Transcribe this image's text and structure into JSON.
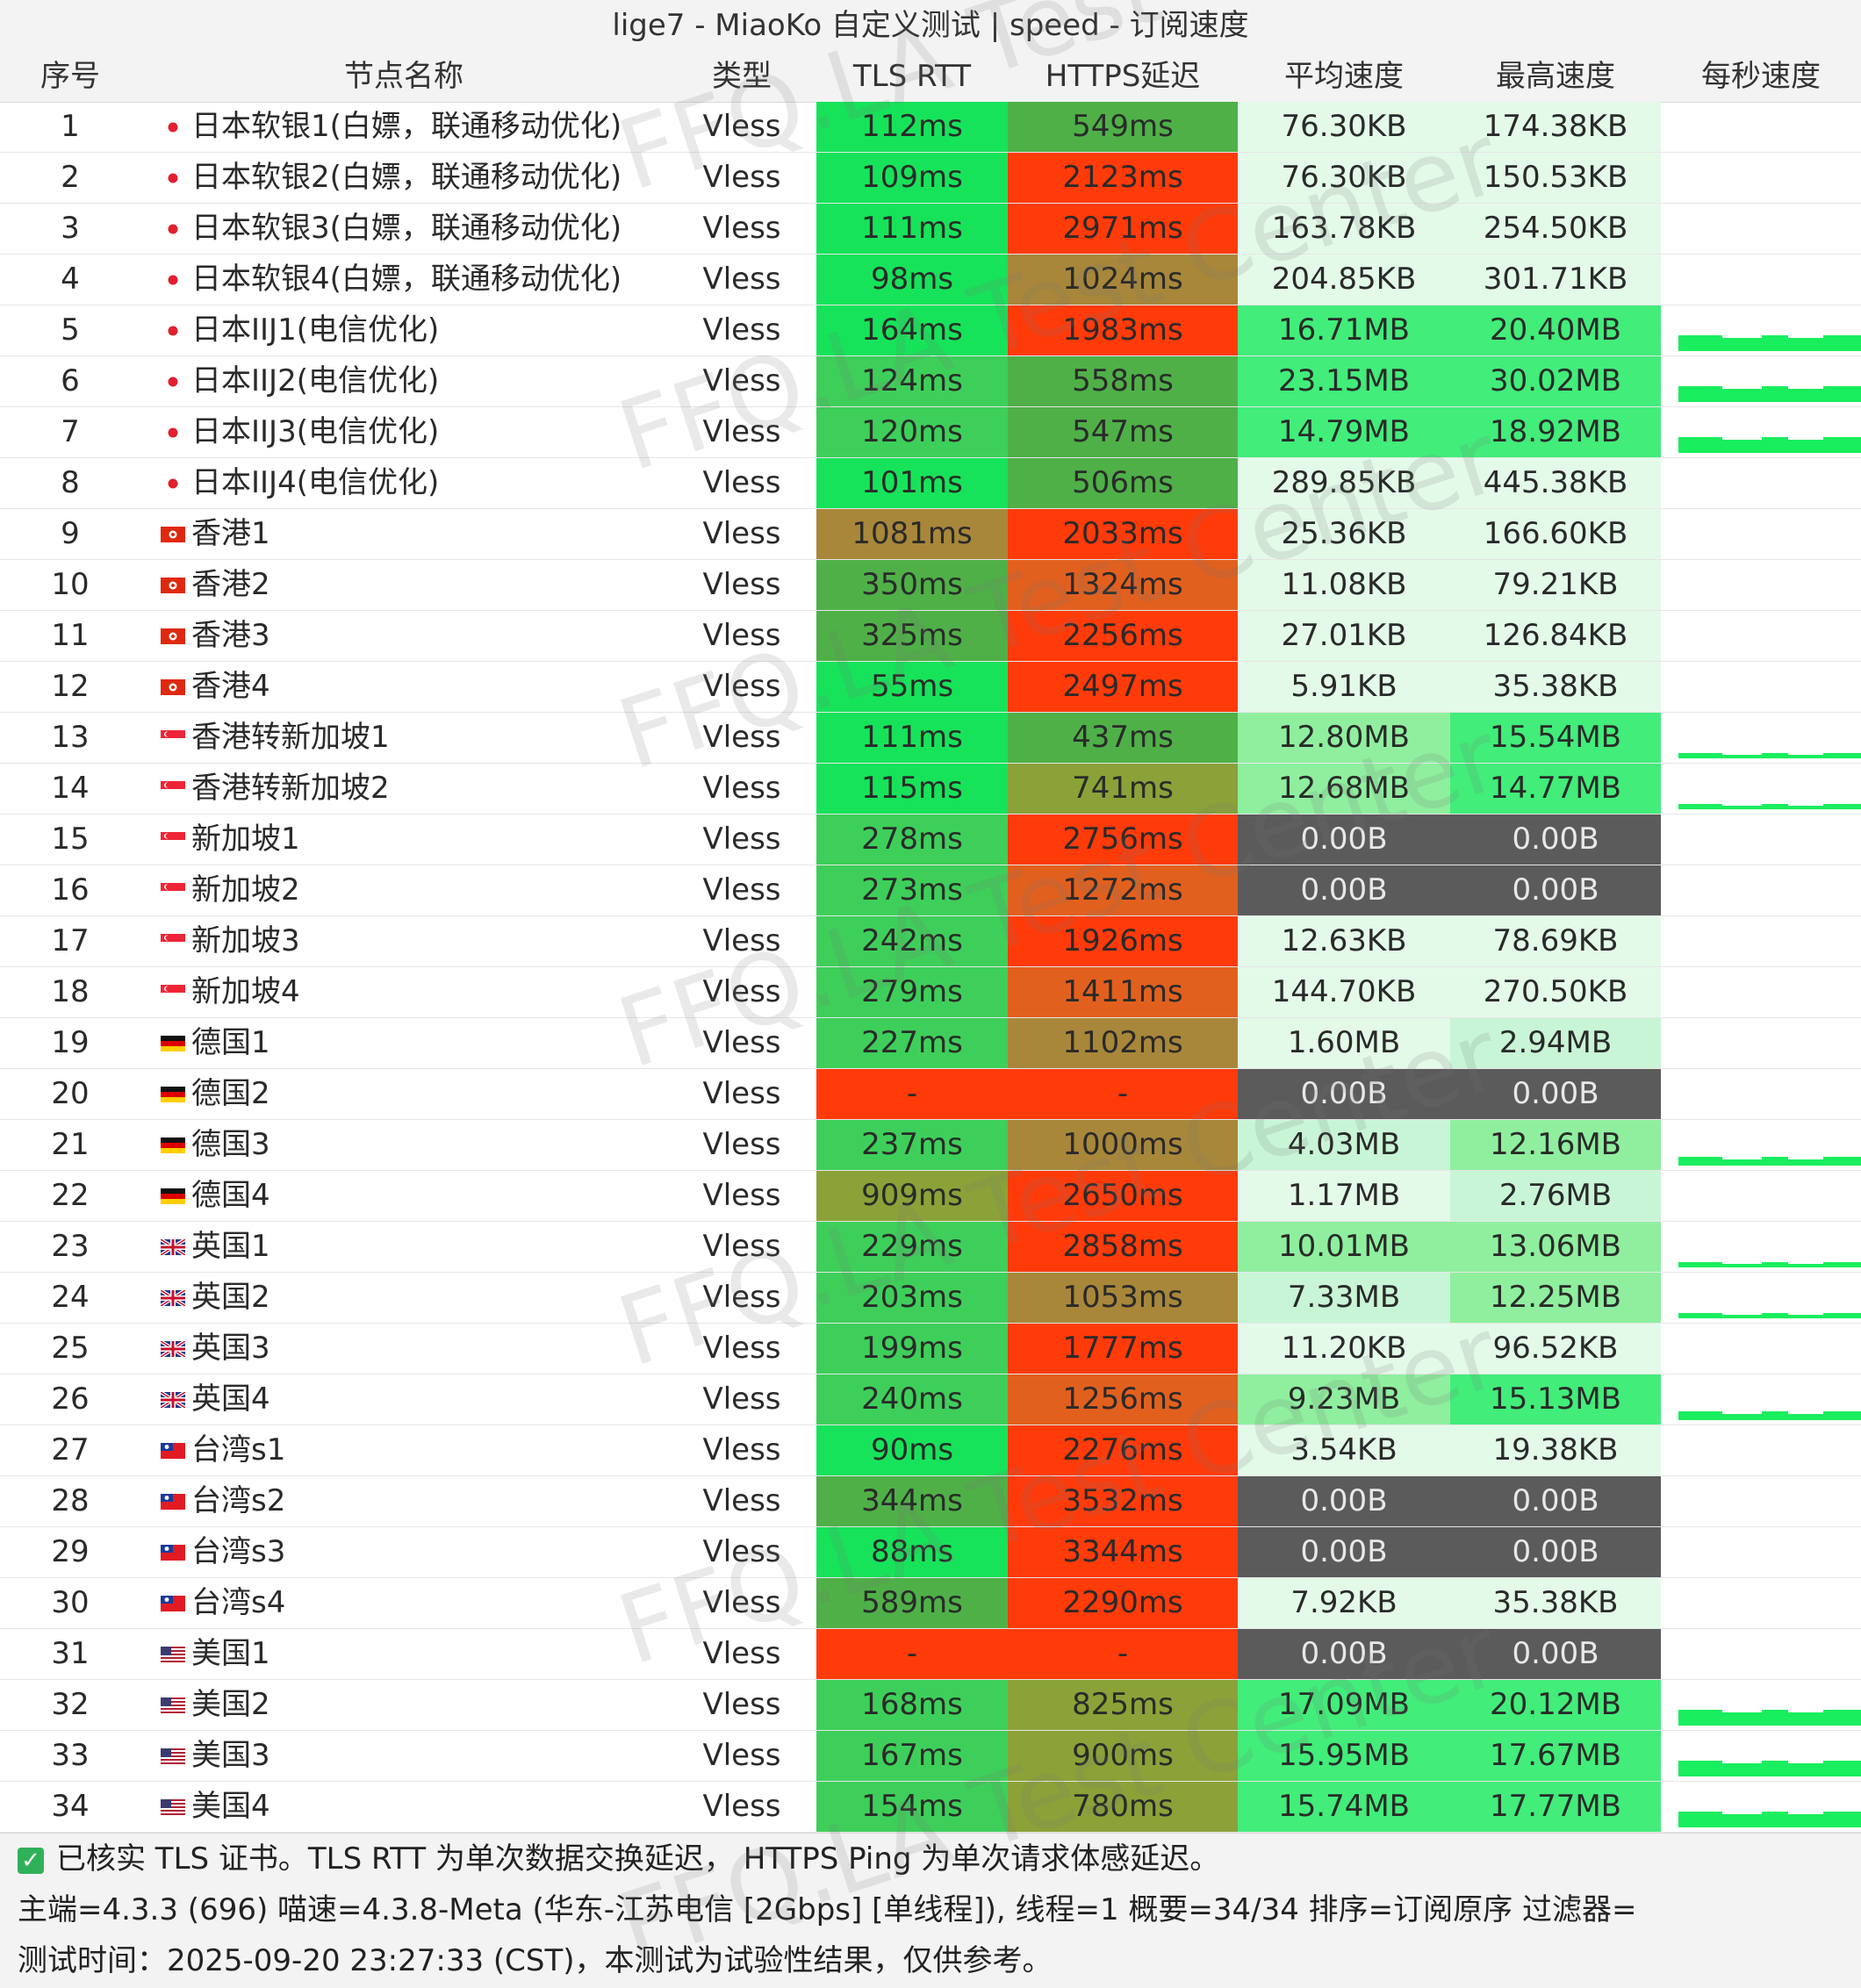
{
  "window": {
    "title": "lige7 - MiaoKo 自定义测试 | speed - 订阅速度"
  },
  "columns": [
    "序号",
    "节点名称",
    "类型",
    "TLS RTT",
    "HTTPS延迟",
    "平均速度",
    "最高速度",
    "每秒速度"
  ],
  "colors": {
    "green_bright": "#17e35a",
    "green": "#3ecf5a",
    "green_dark": "#4fb048",
    "olive": "#8aa238",
    "brown": "#a8873a",
    "orange": "#e2601e",
    "red": "#ff3b0a",
    "gray": "#5b5b5b",
    "speed_very_light": "#e3fae9",
    "speed_light": "#c8f5d6",
    "speed_mid": "#8fef9f",
    "speed_high": "#42ed7a"
  },
  "rows": [
    {
      "id": "1",
      "flag": "jp",
      "name": "日本软银1(白嫖，联通移动优化)",
      "type": "Vless",
      "tls": "112ms",
      "tls_c": "green_bright",
      "https": "549ms",
      "https_c": "green_dark",
      "avg": "76.30KB",
      "avg_c": "speed_very_light",
      "max": "174.38KB",
      "max_c": "speed_very_light",
      "spark": 0
    },
    {
      "id": "2",
      "flag": "jp",
      "name": "日本软银2(白嫖，联通移动优化)",
      "type": "Vless",
      "tls": "109ms",
      "tls_c": "green_bright",
      "https": "2123ms",
      "https_c": "red",
      "avg": "76.30KB",
      "avg_c": "speed_very_light",
      "max": "150.53KB",
      "max_c": "speed_very_light",
      "spark": 0
    },
    {
      "id": "3",
      "flag": "jp",
      "name": "日本软银3(白嫖，联通移动优化)",
      "type": "Vless",
      "tls": "111ms",
      "tls_c": "green_bright",
      "https": "2971ms",
      "https_c": "red",
      "avg": "163.78KB",
      "avg_c": "speed_very_light",
      "max": "254.50KB",
      "max_c": "speed_very_light",
      "spark": 0
    },
    {
      "id": "4",
      "flag": "jp",
      "name": "日本软银4(白嫖，联通移动优化)",
      "type": "Vless",
      "tls": "98ms",
      "tls_c": "green_bright",
      "https": "1024ms",
      "https_c": "brown",
      "avg": "204.85KB",
      "avg_c": "speed_very_light",
      "max": "301.71KB",
      "max_c": "speed_very_light",
      "spark": 0
    },
    {
      "id": "5",
      "flag": "jp",
      "name": "日本IIJ1(电信优化)",
      "type": "Vless",
      "tls": "164ms",
      "tls_c": "green_bright",
      "https": "1983ms",
      "https_c": "red",
      "avg": "16.71MB",
      "avg_c": "speed_high",
      "max": "20.40MB",
      "max_c": "speed_high",
      "spark": 3
    },
    {
      "id": "6",
      "flag": "jp",
      "name": "日本IIJ2(电信优化)",
      "type": "Vless",
      "tls": "124ms",
      "tls_c": "green",
      "https": "558ms",
      "https_c": "green_dark",
      "avg": "23.15MB",
      "avg_c": "speed_high",
      "max": "30.02MB",
      "max_c": "speed_high",
      "spark": 3
    },
    {
      "id": "7",
      "flag": "jp",
      "name": "日本IIJ3(电信优化)",
      "type": "Vless",
      "tls": "120ms",
      "tls_c": "green",
      "https": "547ms",
      "https_c": "green_dark",
      "avg": "14.79MB",
      "avg_c": "speed_high",
      "max": "18.92MB",
      "max_c": "speed_high",
      "spark": 3
    },
    {
      "id": "8",
      "flag": "jp",
      "name": "日本IIJ4(电信优化)",
      "type": "Vless",
      "tls": "101ms",
      "tls_c": "green_bright",
      "https": "506ms",
      "https_c": "green_dark",
      "avg": "289.85KB",
      "avg_c": "speed_very_light",
      "max": "445.38KB",
      "max_c": "speed_very_light",
      "spark": 0
    },
    {
      "id": "9",
      "flag": "hk",
      "name": "香港1",
      "type": "Vless",
      "tls": "1081ms",
      "tls_c": "brown",
      "https": "2033ms",
      "https_c": "red",
      "avg": "25.36KB",
      "avg_c": "speed_very_light",
      "max": "166.60KB",
      "max_c": "speed_very_light",
      "spark": 0
    },
    {
      "id": "10",
      "flag": "hk",
      "name": "香港2",
      "type": "Vless",
      "tls": "350ms",
      "tls_c": "green_dark",
      "https": "1324ms",
      "https_c": "orange",
      "avg": "11.08KB",
      "avg_c": "speed_very_light",
      "max": "79.21KB",
      "max_c": "speed_very_light",
      "spark": 0
    },
    {
      "id": "11",
      "flag": "hk",
      "name": "香港3",
      "type": "Vless",
      "tls": "325ms",
      "tls_c": "green_dark",
      "https": "2256ms",
      "https_c": "red",
      "avg": "27.01KB",
      "avg_c": "speed_very_light",
      "max": "126.84KB",
      "max_c": "speed_very_light",
      "spark": 0
    },
    {
      "id": "12",
      "flag": "hk",
      "name": "香港4",
      "type": "Vless",
      "tls": "55ms",
      "tls_c": "green_bright",
      "https": "2497ms",
      "https_c": "red",
      "avg": "5.91KB",
      "avg_c": "speed_very_light",
      "max": "35.38KB",
      "max_c": "speed_very_light",
      "spark": 0
    },
    {
      "id": "13",
      "flag": "sg",
      "name": "香港转新加坡1",
      "type": "Vless",
      "tls": "111ms",
      "tls_c": "green_bright",
      "https": "437ms",
      "https_c": "green_dark",
      "avg": "12.80MB",
      "avg_c": "speed_mid",
      "max": "15.54MB",
      "max_c": "speed_high",
      "spark": 1
    },
    {
      "id": "14",
      "flag": "sg",
      "name": "香港转新加坡2",
      "type": "Vless",
      "tls": "115ms",
      "tls_c": "green_bright",
      "https": "741ms",
      "https_c": "olive",
      "avg": "12.68MB",
      "avg_c": "speed_mid",
      "max": "14.77MB",
      "max_c": "speed_high",
      "spark": 1
    },
    {
      "id": "15",
      "flag": "sg",
      "name": "新加坡1",
      "type": "Vless",
      "tls": "278ms",
      "tls_c": "green",
      "https": "2756ms",
      "https_c": "red",
      "avg": "0.00B",
      "avg_c": "gray",
      "max": "0.00B",
      "max_c": "gray",
      "spark": 0
    },
    {
      "id": "16",
      "flag": "sg",
      "name": "新加坡2",
      "type": "Vless",
      "tls": "273ms",
      "tls_c": "green",
      "https": "1272ms",
      "https_c": "orange",
      "avg": "0.00B",
      "avg_c": "gray",
      "max": "0.00B",
      "max_c": "gray",
      "spark": 0
    },
    {
      "id": "17",
      "flag": "sg",
      "name": "新加坡3",
      "type": "Vless",
      "tls": "242ms",
      "tls_c": "green",
      "https": "1926ms",
      "https_c": "red",
      "avg": "12.63KB",
      "avg_c": "speed_very_light",
      "max": "78.69KB",
      "max_c": "speed_very_light",
      "spark": 0
    },
    {
      "id": "18",
      "flag": "sg",
      "name": "新加坡4",
      "type": "Vless",
      "tls": "279ms",
      "tls_c": "green",
      "https": "1411ms",
      "https_c": "orange",
      "avg": "144.70KB",
      "avg_c": "speed_very_light",
      "max": "270.50KB",
      "max_c": "speed_very_light",
      "spark": 0
    },
    {
      "id": "19",
      "flag": "de",
      "name": "德国1",
      "type": "Vless",
      "tls": "227ms",
      "tls_c": "green",
      "https": "1102ms",
      "https_c": "brown",
      "avg": "1.60MB",
      "avg_c": "speed_very_light",
      "max": "2.94MB",
      "max_c": "speed_light",
      "spark": 0
    },
    {
      "id": "20",
      "flag": "de",
      "name": "德国2",
      "type": "Vless",
      "tls": "-",
      "tls_c": "red",
      "https": "-",
      "https_c": "red",
      "avg": "0.00B",
      "avg_c": "gray",
      "max": "0.00B",
      "max_c": "gray",
      "spark": 0
    },
    {
      "id": "21",
      "flag": "de",
      "name": "德国3",
      "type": "Vless",
      "tls": "237ms",
      "tls_c": "green",
      "https": "1000ms",
      "https_c": "brown",
      "avg": "4.03MB",
      "avg_c": "speed_light",
      "max": "12.16MB",
      "max_c": "speed_mid",
      "spark": 2
    },
    {
      "id": "22",
      "flag": "de",
      "name": "德国4",
      "type": "Vless",
      "tls": "909ms",
      "tls_c": "olive",
      "https": "2650ms",
      "https_c": "red",
      "avg": "1.17MB",
      "avg_c": "speed_very_light",
      "max": "2.76MB",
      "max_c": "speed_light",
      "spark": 0
    },
    {
      "id": "23",
      "flag": "gb",
      "name": "英国1",
      "type": "Vless",
      "tls": "229ms",
      "tls_c": "green",
      "https": "2858ms",
      "https_c": "red",
      "avg": "10.01MB",
      "avg_c": "speed_mid",
      "max": "13.06MB",
      "max_c": "speed_mid",
      "spark": 1
    },
    {
      "id": "24",
      "flag": "gb",
      "name": "英国2",
      "type": "Vless",
      "tls": "203ms",
      "tls_c": "green",
      "https": "1053ms",
      "https_c": "brown",
      "avg": "7.33MB",
      "avg_c": "speed_light",
      "max": "12.25MB",
      "max_c": "speed_mid",
      "spark": 1
    },
    {
      "id": "25",
      "flag": "gb",
      "name": "英国3",
      "type": "Vless",
      "tls": "199ms",
      "tls_c": "green",
      "https": "1777ms",
      "https_c": "red",
      "avg": "11.20KB",
      "avg_c": "speed_very_light",
      "max": "96.52KB",
      "max_c": "speed_very_light",
      "spark": 0
    },
    {
      "id": "26",
      "flag": "gb",
      "name": "英国4",
      "type": "Vless",
      "tls": "240ms",
      "tls_c": "green",
      "https": "1256ms",
      "https_c": "orange",
      "avg": "9.23MB",
      "avg_c": "speed_mid",
      "max": "15.13MB",
      "max_c": "speed_high",
      "spark": 2
    },
    {
      "id": "27",
      "flag": "tw",
      "name": "台湾s1",
      "type": "Vless",
      "tls": "90ms",
      "tls_c": "green_bright",
      "https": "2276ms",
      "https_c": "red",
      "avg": "3.54KB",
      "avg_c": "speed_very_light",
      "max": "19.38KB",
      "max_c": "speed_very_light",
      "spark": 0
    },
    {
      "id": "28",
      "flag": "tw",
      "name": "台湾s2",
      "type": "Vless",
      "tls": "344ms",
      "tls_c": "green_dark",
      "https": "3532ms",
      "https_c": "red",
      "avg": "0.00B",
      "avg_c": "gray",
      "max": "0.00B",
      "max_c": "gray",
      "spark": 0
    },
    {
      "id": "29",
      "flag": "tw",
      "name": "台湾s3",
      "type": "Vless",
      "tls": "88ms",
      "tls_c": "green_bright",
      "https": "3344ms",
      "https_c": "red",
      "avg": "0.00B",
      "avg_c": "gray",
      "max": "0.00B",
      "max_c": "gray",
      "spark": 0
    },
    {
      "id": "30",
      "flag": "tw",
      "name": "台湾s4",
      "type": "Vless",
      "tls": "589ms",
      "tls_c": "green_dark",
      "https": "2290ms",
      "https_c": "red",
      "avg": "7.92KB",
      "avg_c": "speed_very_light",
      "max": "35.38KB",
      "max_c": "speed_very_light",
      "spark": 0
    },
    {
      "id": "31",
      "flag": "us",
      "name": "美国1",
      "type": "Vless",
      "tls": "-",
      "tls_c": "red",
      "https": "-",
      "https_c": "red",
      "avg": "0.00B",
      "avg_c": "gray",
      "max": "0.00B",
      "max_c": "gray",
      "spark": 0
    },
    {
      "id": "32",
      "flag": "us",
      "name": "美国2",
      "type": "Vless",
      "tls": "168ms",
      "tls_c": "green",
      "https": "825ms",
      "https_c": "olive",
      "avg": "17.09MB",
      "avg_c": "speed_high",
      "max": "20.12MB",
      "max_c": "speed_high",
      "spark": 3
    },
    {
      "id": "33",
      "flag": "us",
      "name": "美国3",
      "type": "Vless",
      "tls": "167ms",
      "tls_c": "green",
      "https": "900ms",
      "https_c": "olive",
      "avg": "15.95MB",
      "avg_c": "speed_high",
      "max": "17.67MB",
      "max_c": "speed_high",
      "spark": 3
    },
    {
      "id": "34",
      "flag": "us",
      "name": "美国4",
      "type": "Vless",
      "tls": "154ms",
      "tls_c": "green",
      "https": "780ms",
      "https_c": "olive",
      "avg": "15.74MB",
      "avg_c": "speed_high",
      "max": "17.77MB",
      "max_c": "speed_high",
      "spark": 3
    }
  ],
  "footer": {
    "line1": "已核实 TLS 证书。TLS RTT 为单次数据交换延迟， HTTPS Ping 为单次请求体感延迟。",
    "line2": "主端=4.3.3 (696) 喵速=4.3.8-Meta (华东-江苏电信 [2Gbps] [单线程]), 线程=1 概要=34/34 排序=订阅原序 过滤器=",
    "line3": "测试时间：2025-09-20 23:27:33 (CST)，本测试为试验性结果，仅供参考。"
  },
  "watermark": "FFQ.LA Test Center"
}
